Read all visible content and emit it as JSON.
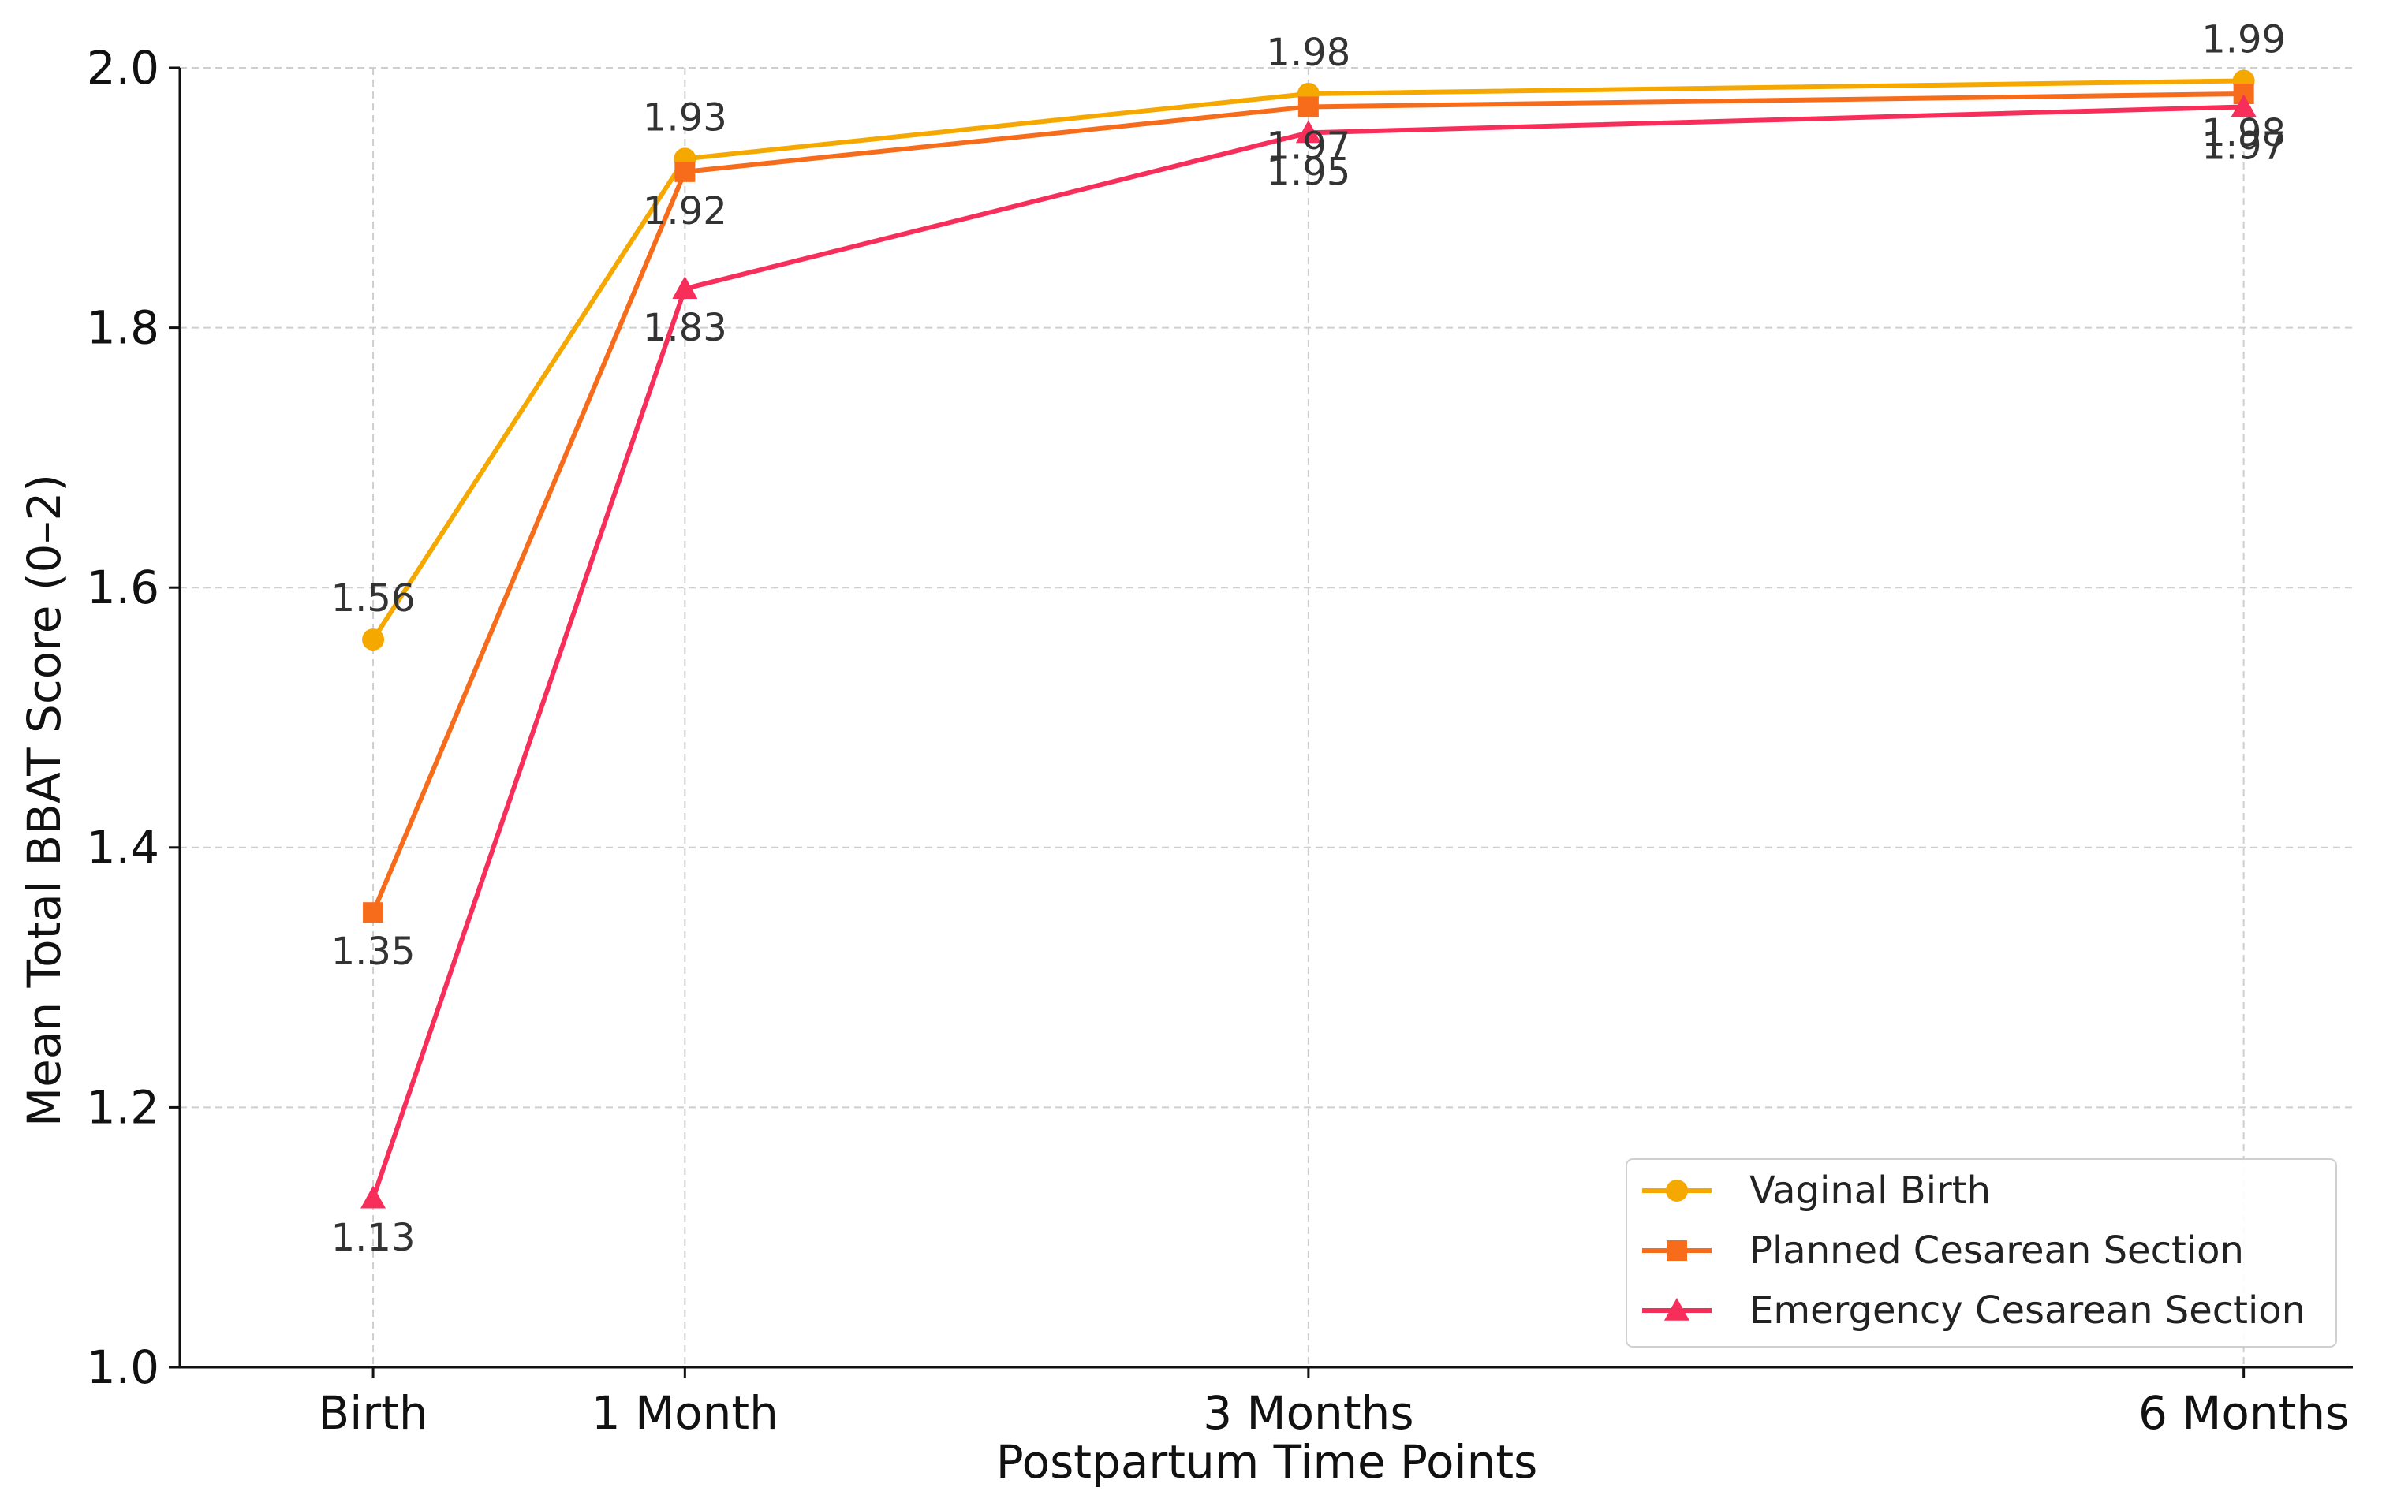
{
  "chart_data": {
    "type": "line",
    "title": "",
    "xlabel": "Postpartum Time Points",
    "ylabel": "Mean Total BBAT Score (0–2)",
    "categories": [
      "Birth",
      "1 Month",
      "3 Months",
      "6 Months"
    ],
    "x": [
      0,
      1,
      3,
      6
    ],
    "ylim": [
      1.0,
      2.0
    ],
    "yticks": [
      1.0,
      1.2,
      1.4,
      1.6,
      1.8,
      2.0
    ],
    "ytick_labels": [
      "1.0",
      "1.2",
      "1.4",
      "1.6",
      "1.8",
      "2.0"
    ],
    "grid": true,
    "legend_position": "lower-right",
    "series": [
      {
        "name": "Vaginal Birth",
        "color": "#F5A800",
        "marker": "circle",
        "values": [
          1.56,
          1.93,
          1.98,
          1.99
        ],
        "labels": [
          "1.56",
          "1.93",
          "1.98",
          "1.99"
        ],
        "label_side": [
          "above",
          "above",
          "above",
          "above"
        ]
      },
      {
        "name": "Planned Cesarean Section",
        "color": "#F76C1B",
        "marker": "square",
        "values": [
          1.35,
          1.92,
          1.97,
          1.98
        ],
        "labels": [
          "1.35",
          "1.92",
          "1.97",
          "1.98"
        ],
        "label_side": [
          "below",
          "below",
          "below",
          "below"
        ]
      },
      {
        "name": "Emergency Cesarean Section",
        "color": "#F72E5A",
        "marker": "triangle",
        "values": [
          1.13,
          1.83,
          1.95,
          1.97
        ],
        "labels": [
          "1.13",
          "1.83",
          "1.95",
          "1.97"
        ],
        "label_side": [
          "below",
          "below",
          "below",
          "below"
        ]
      }
    ]
  }
}
